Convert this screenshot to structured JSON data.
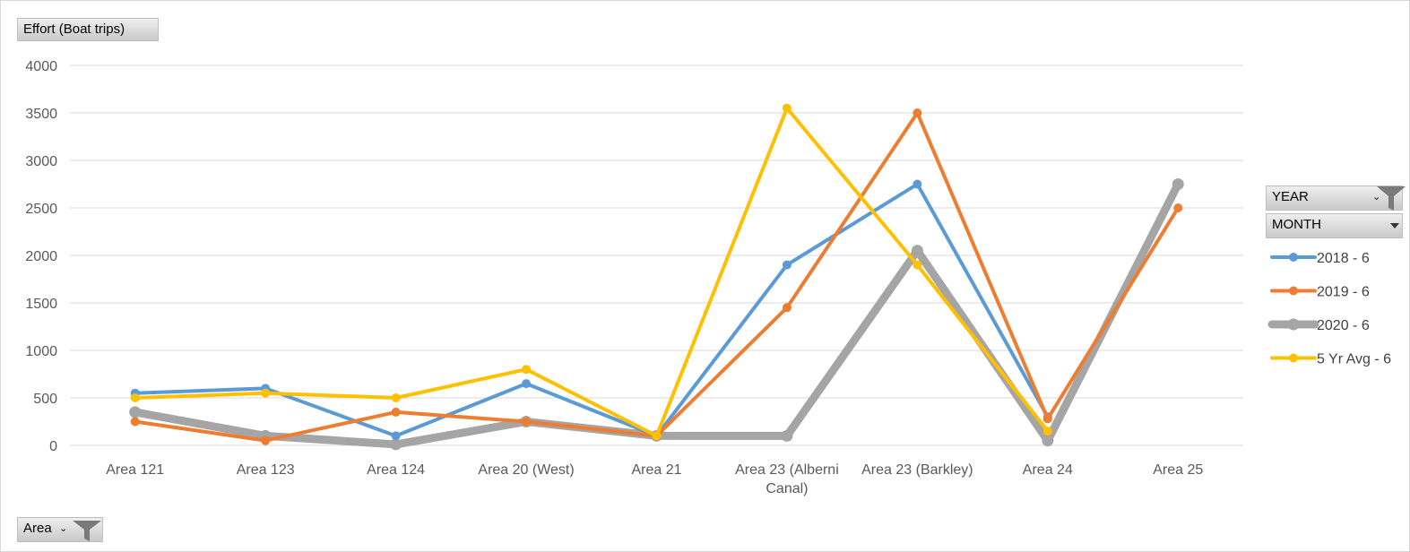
{
  "chart_data": {
    "type": "line",
    "ylabel": "Effort (Boat trips)",
    "xlabel": "Area",
    "ylim": [
      0,
      4000
    ],
    "yticks": [
      0,
      500,
      1000,
      1500,
      2000,
      2500,
      3000,
      3500,
      4000
    ],
    "categories": [
      "Area 121",
      "Area 123",
      "Area 124",
      "Area 20 (West)",
      "Area 21",
      "Area 23 (Alberni Canal)",
      "Area 23 (Barkley)",
      "Area 24",
      "Area 25"
    ],
    "category_lines": [
      [
        "Area 121"
      ],
      [
        "Area 123"
      ],
      [
        "Area 124"
      ],
      [
        "Area 20 (West)"
      ],
      [
        "Area 21"
      ],
      [
        "Area 23 (Alberni",
        "Canal)"
      ],
      [
        "Area 23 (Barkley)"
      ],
      [
        "Area 24"
      ],
      [
        "Area 25"
      ]
    ],
    "grid": true,
    "legend_placement": "right",
    "legend_filters": [
      "YEAR",
      "MONTH"
    ],
    "series": [
      {
        "name": "2018 - 6",
        "color": "#5B9BD5",
        "values": [
          550,
          600,
          100,
          650,
          100,
          1900,
          2750,
          300,
          null
        ]
      },
      {
        "name": "2019 - 6",
        "color": "#ED7D31",
        "values": [
          250,
          50,
          350,
          250,
          100,
          1450,
          3500,
          280,
          2500
        ]
      },
      {
        "name": "2020 - 6",
        "color": "#A5A5A5",
        "values": [
          350,
          100,
          10,
          250,
          100,
          100,
          2050,
          50,
          2750
        ]
      },
      {
        "name": "5 Yr Avg - 6",
        "color": "#FFC000",
        "values": [
          500,
          550,
          500,
          800,
          100,
          3550,
          1900,
          150,
          null
        ]
      }
    ]
  }
}
